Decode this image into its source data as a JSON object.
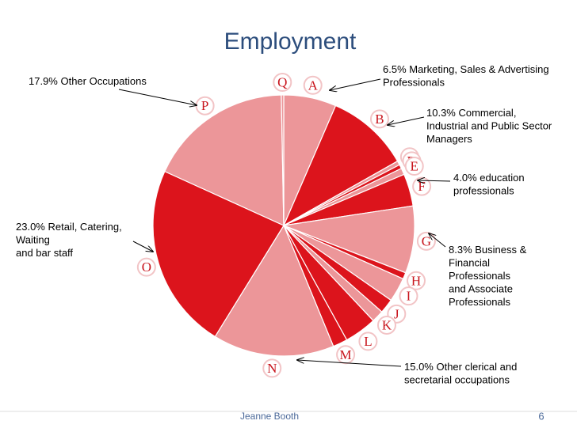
{
  "chart_data": {
    "type": "pie",
    "title": "Employment",
    "categories": [
      "A",
      "B",
      "C",
      "D",
      "E",
      "F",
      "G",
      "H",
      "I",
      "J",
      "K",
      "L",
      "M",
      "N",
      "O",
      "P",
      "Q"
    ],
    "values": [
      6.5,
      10.3,
      0.5,
      0.5,
      0.8,
      4.0,
      8.3,
      0.8,
      3.0,
      1.8,
      1.5,
      4.0,
      1.8,
      15.0,
      23.0,
      17.9,
      0.3
    ],
    "colors": [
      "#ec9699",
      "#dc141c",
      "#ec9699",
      "#dc141c",
      "#ec9699",
      "#dc141c",
      "#ec9699",
      "#dc141c",
      "#ec9699",
      "#dc141c",
      "#ec9699",
      "#dc141c",
      "#dc141c",
      "#ec9699",
      "#dc141c",
      "#ec9699",
      "#ec9699"
    ],
    "annotations": [
      [
        "6.5%  Marketing, Sales  & Advertising",
        "Professionals"
      ],
      [
        "10.3%   Commercial,",
        "Industrial and Public Sector",
        "Managers"
      ],
      [
        "4.0% education",
        "professionals"
      ],
      [
        "8.3%  Business &",
        "Financial",
        "Professionals",
        "and Associate",
        "Professionals"
      ],
      [
        "15.0%  Other clerical and",
        "secretarial occupations"
      ],
      [
        "23.0%  Retail, Catering,",
        "Waiting",
        "and bar staff"
      ],
      [
        "17.9%  Other Occupations"
      ]
    ]
  },
  "footer": {
    "author": "Jeanne Booth",
    "page": "6"
  }
}
